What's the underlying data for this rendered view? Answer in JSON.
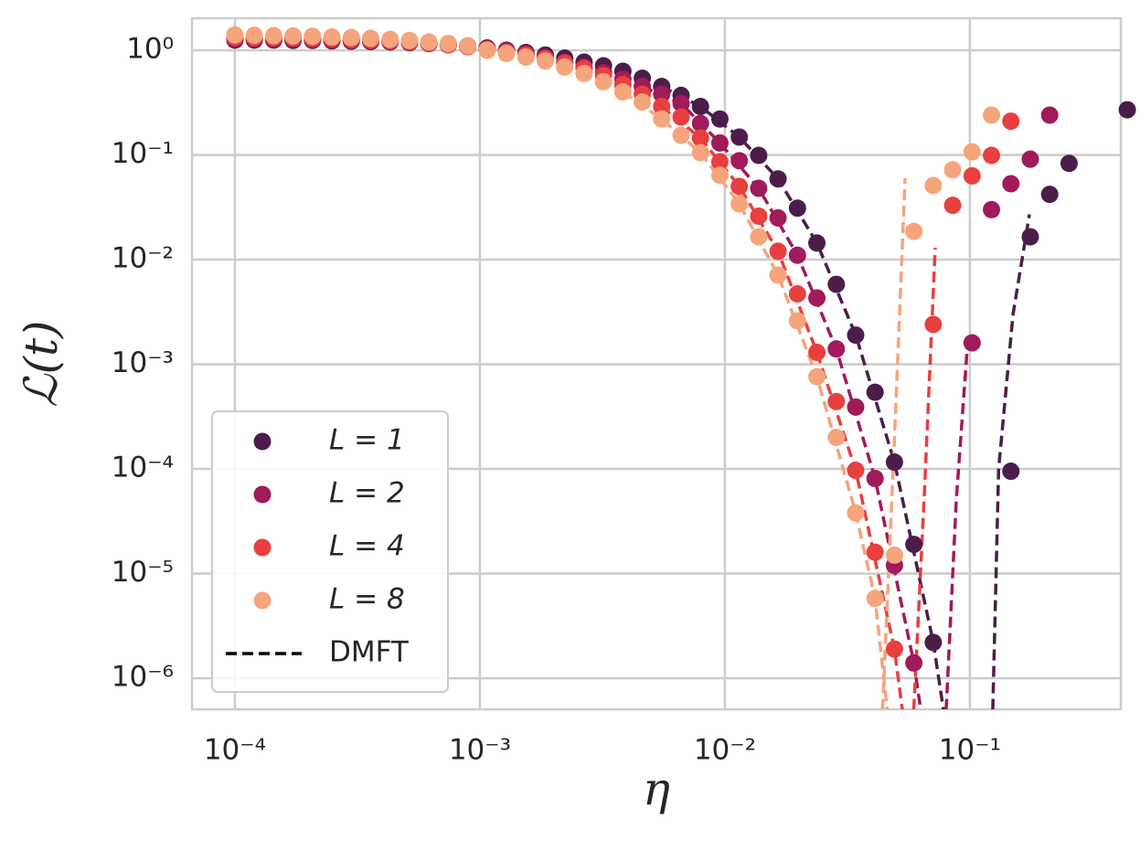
{
  "chart_data": {
    "type": "scatter",
    "xlabel": "η",
    "ylabel": "ℒ(t)",
    "xscale": "log",
    "yscale": "log",
    "grid": true,
    "legend": "lower left",
    "xlim": [
      6.68e-05,
      0.413
    ],
    "ylim": [
      5.05e-07,
      2.02
    ],
    "xticks": [
      {
        "value": 0.0001,
        "label": "10⁻⁴"
      },
      {
        "value": 0.001,
        "label": "10⁻³"
      },
      {
        "value": 0.01,
        "label": "10⁻²"
      },
      {
        "value": 0.1,
        "label": "10⁻¹"
      }
    ],
    "yticks": [
      {
        "value": 1,
        "label": "10⁰"
      },
      {
        "value": 0.1,
        "label": "10⁻¹"
      },
      {
        "value": 0.01,
        "label": "10⁻²"
      },
      {
        "value": 0.001,
        "label": "10⁻³"
      },
      {
        "value": 0.0001,
        "label": "10⁻⁴"
      },
      {
        "value": 1e-05,
        "label": "10⁻⁵"
      },
      {
        "value": 1e-06,
        "label": "10⁻⁶"
      }
    ],
    "x": [
      0.0001,
      0.00012,
      0.000144,
      0.0001728,
      0.0002074,
      0.0002488,
      0.0002986,
      0.0003583,
      0.00043,
      0.000516,
      0.0006192,
      0.000743,
      0.0008916,
      0.00107,
      0.001284,
      0.001541,
      0.001849,
      0.002219,
      0.002662,
      0.003195,
      0.003834,
      0.004601,
      0.005521,
      0.006625,
      0.00795,
      0.00954,
      0.01145,
      0.01374,
      0.01648,
      0.01978,
      0.02374,
      0.02849,
      0.03418,
      0.04102,
      0.04922,
      0.05907,
      0.07088,
      0.08506,
      0.1021,
      0.1225,
      0.147,
      0.1764,
      0.2117,
      0.254,
      0.3048,
      0.3658,
      0.4389
    ],
    "series": [
      {
        "name": "L = 1",
        "color": "#4c1d4b",
        "values": [
          1.25,
          1.25,
          1.25,
          1.24,
          1.24,
          1.23,
          1.22,
          1.21,
          1.2,
          1.18,
          1.16,
          1.13,
          1.1,
          1.05,
          1.0,
          0.95,
          0.9,
          0.84,
          0.77,
          0.71,
          0.63,
          0.54,
          0.45,
          0.37,
          0.29,
          0.22,
          0.148,
          0.099,
          0.059,
          0.031,
          0.0144,
          0.0058,
          0.0019,
          0.00054,
          0.000116,
          1.9e-05,
          2.2e-06,
          null,
          null,
          null,
          9.5e-05,
          0.0165,
          0.042,
          0.083,
          null,
          null,
          0.27
        ]
      },
      {
        "name": "L = 2",
        "color": "#a11a5b",
        "values": [
          1.28,
          1.28,
          1.27,
          1.27,
          1.26,
          1.25,
          1.24,
          1.23,
          1.21,
          1.19,
          1.16,
          1.13,
          1.09,
          1.03,
          0.98,
          0.92,
          0.85,
          0.77,
          0.69,
          0.61,
          0.53,
          0.45,
          0.38,
          0.31,
          0.2,
          0.13,
          0.088,
          0.048,
          0.025,
          0.011,
          0.0043,
          0.0014,
          0.00039,
          8.1e-05,
          1.2e-05,
          1.4e-06,
          null,
          null,
          0.0016,
          0.03,
          0.053,
          0.091,
          0.24,
          null,
          null,
          null,
          null
        ]
      },
      {
        "name": "L = 4",
        "color": "#e83f3f",
        "values": [
          1.33,
          1.32,
          1.32,
          1.31,
          1.3,
          1.29,
          1.27,
          1.25,
          1.23,
          1.2,
          1.17,
          1.13,
          1.08,
          1.02,
          0.96,
          0.9,
          0.83,
          0.75,
          0.67,
          0.57,
          0.47,
          0.38,
          0.29,
          0.23,
          0.145,
          0.086,
          0.05,
          0.026,
          0.012,
          0.0047,
          0.0013,
          0.00044,
          9.7e-05,
          1.6e-05,
          1.9e-06,
          null,
          0.0024,
          0.033,
          0.063,
          0.099,
          0.21,
          null,
          null,
          null,
          null,
          null,
          null
        ]
      },
      {
        "name": "L = 8",
        "color": "#f6a47b",
        "values": [
          1.4,
          1.39,
          1.38,
          1.37,
          1.36,
          1.34,
          1.32,
          1.3,
          1.27,
          1.24,
          1.2,
          1.16,
          1.1,
          1.0,
          0.93,
          0.86,
          0.79,
          0.69,
          0.6,
          0.5,
          0.4,
          0.32,
          0.22,
          0.154,
          0.105,
          0.064,
          0.034,
          0.0165,
          0.0071,
          0.0026,
          0.00076,
          0.0002,
          3.8e-05,
          5.8e-06,
          1.5e-05,
          0.0186,
          0.051,
          0.072,
          0.107,
          0.24,
          null,
          null,
          null,
          null,
          null,
          null,
          null
        ]
      }
    ],
    "dmft": {
      "name": "DMFT",
      "legend_color": "#000000",
      "lines": [
        {
          "color": "#4c1d4b",
          "x": [
            0.00552,
            0.00795,
            0.01145,
            0.01648,
            0.02374,
            0.0342,
            0.0492,
            0.0709,
            0.078,
            null,
            0.124,
            0.131,
            0.15,
            0.175
          ],
          "values": [
            0.45,
            0.29,
            0.148,
            0.059,
            0.0144,
            0.0019,
            0.000116,
            2.2e-06,
            5e-07,
            null,
            5e-07,
            0.0001,
            0.003,
            0.027
          ]
        },
        {
          "color": "#a11a5b",
          "x": [
            0.0046,
            0.00663,
            0.00954,
            0.01374,
            0.01978,
            0.02849,
            0.04102,
            0.05907,
            0.063,
            null,
            0.08,
            0.088,
            0.0977
          ],
          "values": [
            0.45,
            0.31,
            0.13,
            0.048,
            0.011,
            0.0014,
            8.1e-05,
            1.4e-06,
            5e-07,
            null,
            5e-07,
            5e-05,
            0.0015
          ]
        },
        {
          "color": "#e83f3f",
          "x": [
            0.00552,
            0.00795,
            0.01145,
            0.01648,
            0.02374,
            0.0342,
            0.0492,
            0.053,
            null,
            0.059,
            0.065,
            0.0722
          ],
          "values": [
            0.29,
            0.145,
            0.05,
            0.012,
            0.0013,
            9.7e-05,
            1.9e-06,
            5e-07,
            null,
            5e-07,
            5e-05,
            0.013
          ]
        },
        {
          "color": "#f6a47b",
          "x": [
            0.00383,
            0.00552,
            0.00795,
            0.01145,
            0.01648,
            0.02374,
            0.0342,
            0.041,
            0.046,
            null,
            0.044,
            0.049,
            0.0544
          ],
          "values": [
            0.4,
            0.22,
            0.105,
            0.034,
            0.0071,
            0.00076,
            3.8e-05,
            5.8e-06,
            5e-07,
            null,
            5e-07,
            0.00015,
            0.06
          ]
        }
      ]
    }
  }
}
